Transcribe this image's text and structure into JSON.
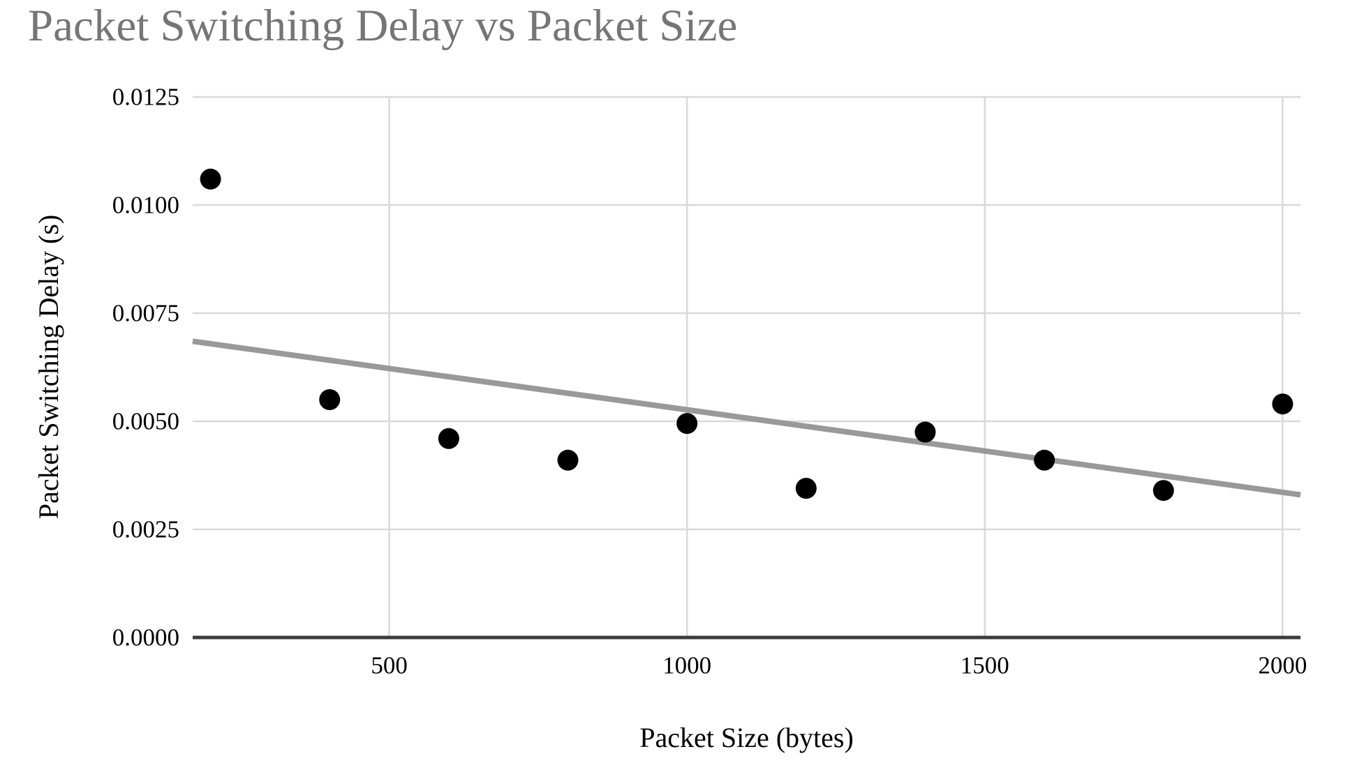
{
  "chart": {
    "title": "Packet Switching Delay vs Packet Size",
    "xlabel": "Packet Size (bytes)",
    "ylabel": "Packet Switching Delay (s)"
  },
  "chart_data": {
    "type": "scatter",
    "title": "Packet Switching Delay vs Packet Size",
    "xlabel": "Packet Size (bytes)",
    "ylabel": "Packet Switching Delay (s)",
    "x": [
      200,
      400,
      600,
      800,
      1000,
      1200,
      1400,
      1600,
      1800,
      2000
    ],
    "y": [
      0.0106,
      0.0055,
      0.0046,
      0.0041,
      0.00495,
      0.00345,
      0.00475,
      0.0041,
      0.0034,
      0.0054
    ],
    "xlim": [
      170,
      2030
    ],
    "ylim": [
      0,
      0.0125
    ],
    "x_ticks": [
      500,
      1000,
      1500,
      2000
    ],
    "x_tick_labels": [
      "500",
      "1000",
      "1500",
      "2000"
    ],
    "y_ticks": [
      0,
      0.0025,
      0.005,
      0.0075,
      0.01,
      0.0125
    ],
    "y_tick_labels": [
      "0.0000",
      "0.0025",
      "0.0050",
      "0.0075",
      "0.0100",
      "0.0125"
    ],
    "grid": true,
    "legend": "none",
    "trendline": {
      "x1": 170,
      "y1": 0.00685,
      "x2": 2030,
      "y2": 0.0033
    },
    "marker": {
      "shape": "circle",
      "radius_px": 15,
      "color": "#000000"
    },
    "colors": {
      "title": "#757575",
      "labels": "#000000",
      "gridline": "#d9d9d9",
      "axis_line": "#3d3d3d",
      "trendline": "#999999",
      "background": "#ffffff"
    }
  }
}
